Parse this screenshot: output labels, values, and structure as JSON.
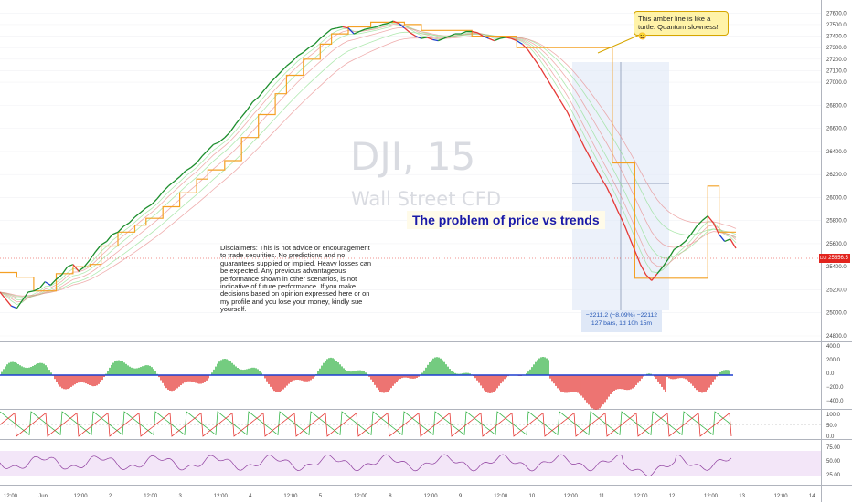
{
  "watermark": {
    "symbol": "DJI, 15",
    "name": "Wall Street CFD"
  },
  "chart_title": "The problem of price vs trends",
  "callout": "This amber line is like a turtle. Quantum slowness! 😄",
  "disclaimer": "Disclaimers: This is not advice or encouragement to trade securities. No predictions and no guarantees supplied or implied. Heavy losses can be expected. Any previous advantageous performance shown in other scenarios, is not indicative of future performance.  If you make decisions based on opinion expressed here or on my profile and you lose your money, kindly sue yourself.",
  "range_box": {
    "line1": "−2211.2 (−8.09%) −22112",
    "line2": "127 bars, 1d 10h 15m"
  },
  "last_price": {
    "symbol": "DJI",
    "value": "25556.5"
  },
  "colors": {
    "amber": "#f4a024",
    "rising": "#1a8d2b",
    "falling": "#e53935",
    "neutral": "#1e3fcf",
    "ribbon_green": "#8fdf8f",
    "ribbon_red": "#e88a8a",
    "measure_bg": "#dde6f6",
    "osc_zone": "#f3e6f8",
    "rsi_line": "#8e3d9e",
    "hist_green": "#39b54a",
    "hist_red": "#e53935"
  },
  "chart_data": {
    "type": "line",
    "symbol": "DJI",
    "timeframe": "15",
    "x_tick_labels": [
      "12:00",
      "Jun",
      "12:00",
      "2",
      "12:00",
      "3",
      "12:00",
      "4",
      "12:00",
      "5",
      "12:00",
      "8",
      "12:00",
      "9",
      "12:00",
      "10",
      "12:00",
      "11",
      "12:00",
      "12",
      "12:00",
      "13",
      "12:00",
      "14"
    ],
    "y_axis_price": {
      "ticks": [
        "27600.0",
        "27500.0",
        "27400.0",
        "27300.0",
        "27200.0",
        "27100.0",
        "27000.0",
        "26800.0",
        "26600.0",
        "26400.0",
        "26200.0",
        "26000.0",
        "25800.0",
        "25600.0",
        "25400.0",
        "25200.0",
        "25000.0",
        "24800.0"
      ],
      "ylim": [
        24800,
        27650
      ]
    },
    "y_axis_histogram": {
      "ticks": [
        "400.0",
        "200.0",
        "0.0",
        "−200.0",
        "−400.0"
      ]
    },
    "y_axis_oscillator": {
      "ticks": [
        "100.0",
        "50.0",
        "0.0"
      ]
    },
    "y_axis_rsi": {
      "ticks": [
        "75.00",
        "50.00",
        "25.00"
      ]
    },
    "series": [
      {
        "name": "",
        "values": [
          25180,
          25120,
          25060,
          25040,
          25110,
          25180,
          25190,
          25210,
          25270,
          25240,
          25290,
          25330,
          25400,
          25420,
          25360,
          25400,
          25460,
          25530,
          25590,
          25620,
          25680,
          25700,
          25750,
          25780,
          25830,
          25870,
          25910,
          25940,
          25990,
          26050,
          26100,
          26140,
          26180,
          26230,
          26260,
          26300,
          26360,
          26410,
          26460,
          26480,
          26520,
          26570,
          26640,
          26700,
          26760,
          26830,
          26870,
          26930,
          26990,
          27040,
          27090,
          27140,
          27180,
          27230,
          27260,
          27300,
          27330,
          27380,
          27420,
          27460,
          27470,
          27480,
          27470,
          27420,
          27440,
          27460,
          27470,
          27480,
          27500,
          27510,
          27530,
          27510,
          27470,
          27430,
          27400,
          27380,
          27390,
          27370,
          27360,
          27380,
          27400,
          27420,
          27420,
          27440,
          27440,
          27430,
          27400,
          27380,
          27360,
          27380,
          27390,
          27380,
          27360,
          27330,
          27280,
          27210,
          27140,
          27060,
          26980,
          26900,
          26820,
          26740,
          26640,
          26540,
          26440,
          26350,
          26260,
          26170,
          26090,
          25990,
          25880,
          25780,
          25660,
          25540,
          25420,
          25330,
          25280,
          25340,
          25400,
          25470,
          25550,
          25580,
          25620,
          25680,
          25750,
          25800,
          25840,
          25780,
          25680,
          25620,
          25640,
          25560
        ]
      },
      {
        "name": "",
        "values": [
          25350,
          25350,
          25350,
          25310,
          25310,
          25310,
          25190,
          25190,
          25190,
          25190,
          25340,
          25340,
          25340,
          25400,
          25400,
          25400,
          25420,
          25420,
          25580,
          25580,
          25580,
          25700,
          25700,
          25700,
          25760,
          25760,
          25820,
          25820,
          25820,
          25920,
          25920,
          25920,
          26040,
          26040,
          26040,
          26160,
          26160,
          26240,
          26240,
          26240,
          26320,
          26320,
          26320,
          26520,
          26520,
          26520,
          26720,
          26720,
          26720,
          26900,
          26900,
          27060,
          27060,
          27060,
          27200,
          27200,
          27200,
          27330,
          27330,
          27420,
          27420,
          27420,
          27480,
          27480,
          27480,
          27480,
          27520,
          27520,
          27520,
          27520,
          27520,
          27520,
          27500,
          27500,
          27500,
          27450,
          27450,
          27450,
          27450,
          27450,
          27450,
          27450,
          27450,
          27450,
          27400,
          27400,
          27400,
          27400,
          27400,
          27400,
          27400,
          27400,
          27300,
          27300,
          27300,
          27300,
          27300,
          27300,
          27300,
          27300,
          27300,
          27300,
          27300,
          27300,
          27300,
          27300,
          27300,
          27300,
          27300,
          26300,
          26300,
          26300,
          26300,
          25300,
          25300,
          25300,
          25300,
          25300,
          25300,
          25300,
          25300,
          25300,
          25300,
          25300,
          25300,
          25300,
          26100,
          26100,
          25700,
          25700,
          25700,
          25700
        ]
      }
    ]
  }
}
